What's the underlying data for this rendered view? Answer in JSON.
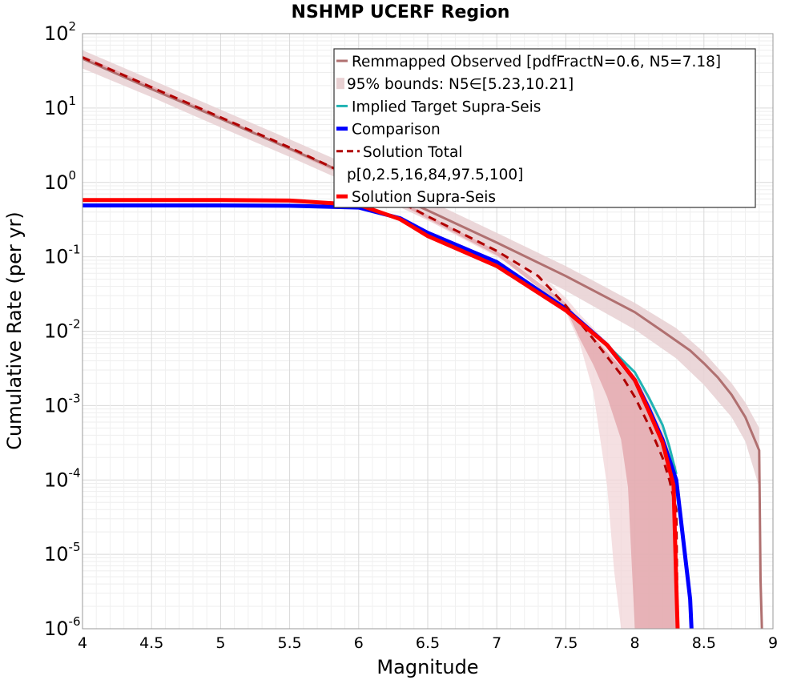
{
  "chart_data": {
    "type": "line",
    "title": "NSHMP UCERF Region",
    "xlabel": "Magnitude",
    "ylabel": "Cumulative Rate (per yr)",
    "xlim": [
      4,
      9
    ],
    "ylim": [
      1e-06,
      100
    ],
    "yscale": "log",
    "grid": true,
    "legend_position": "top-right",
    "x_ticks": [
      "4",
      "4.5",
      "5",
      "5.5",
      "6",
      "6.5",
      "7",
      "7.5",
      "8",
      "8.5",
      "9"
    ],
    "y_ticks": [
      {
        "base": "10",
        "exp": "-6"
      },
      {
        "base": "10",
        "exp": "-5"
      },
      {
        "base": "10",
        "exp": "-4"
      },
      {
        "base": "10",
        "exp": "-3"
      },
      {
        "base": "10",
        "exp": "-2"
      },
      {
        "base": "10",
        "exp": "-1"
      },
      {
        "base": "10",
        "exp": "0"
      },
      {
        "base": "10",
        "exp": "1"
      },
      {
        "base": "10",
        "exp": "2"
      }
    ],
    "legend": [
      {
        "label": "Remmapped Observed [pdfFractN=0.6, N5=7.18]",
        "style": "line",
        "color": "#b07070"
      },
      {
        "label": "95% bounds: N5∈[5.23,10.21]",
        "style": "band",
        "color": "#e8d0d2"
      },
      {
        "label": "Implied Target Supra-Seis",
        "style": "line",
        "color": "#1fb3b3"
      },
      {
        "label": "Comparison",
        "style": "thick-line",
        "color": "#0000ff"
      },
      {
        "label": "Solution Total",
        "style": "dashed",
        "color": "#b00000"
      },
      {
        "label": "p[0,2.5,16,84,97.5,100]",
        "style": "none",
        "color": "#ffffff"
      },
      {
        "label": "Solution Supra-Seis",
        "style": "thick-line",
        "color": "#ff0000"
      }
    ],
    "bands": [
      {
        "name": "95% bounds: N5∈[5.23,10.21]",
        "color": "#e8d0d2",
        "x": [
          4,
          4.5,
          5,
          5.5,
          6,
          6.5,
          7,
          7.5,
          8,
          8.3,
          8.5,
          8.7,
          8.8,
          8.9
        ],
        "lower": [
          34,
          14,
          5.5,
          2.2,
          0.85,
          0.31,
          0.105,
          0.035,
          0.0105,
          0.0043,
          0.0019,
          0.0007,
          0.00033,
          8e-05
        ],
        "upper": [
          60,
          24,
          9.5,
          3.8,
          1.5,
          0.58,
          0.21,
          0.075,
          0.024,
          0.011,
          0.0052,
          0.002,
          0.0011,
          0.0005
        ]
      },
      {
        "name": "Solution Total outer percentile band",
        "color": "#f1d6d8",
        "x": [
          4,
          5,
          5.5,
          6,
          6.5,
          7,
          7.3,
          7.5,
          7.6,
          7.7,
          7.8,
          7.85,
          7.9,
          8.0,
          8.1,
          8.2,
          8.25,
          8.3
        ],
        "lower": [
          45,
          7,
          2.8,
          0.99,
          0.31,
          0.1,
          0.048,
          0.018,
          0.007,
          0.0015,
          8e-05,
          6e-06,
          1e-06,
          1e-06,
          1e-06,
          1e-06,
          1e-06,
          1e-06
        ],
        "upper": [
          52,
          8,
          3.2,
          1.15,
          0.37,
          0.125,
          0.062,
          0.028,
          0.017,
          0.011,
          0.007,
          0.0055,
          0.0045,
          0.0025,
          0.0014,
          0.0006,
          0.00025,
          0.00012
        ]
      },
      {
        "name": "Solution Total inner percentile band",
        "color": "#e2a3a8",
        "x": [
          4,
          5,
          6,
          7,
          7.5,
          7.6,
          7.7,
          7.8,
          7.9,
          7.95,
          8.0,
          8.1,
          8.2,
          8.3
        ],
        "lower": [
          46,
          7.2,
          1.0,
          0.105,
          0.02,
          0.008,
          0.0035,
          0.0013,
          0.00035,
          8e-05,
          1e-06,
          1e-06,
          1e-06,
          1e-06
        ],
        "upper": [
          51,
          7.8,
          1.1,
          0.12,
          0.024,
          0.014,
          0.0085,
          0.0052,
          0.0033,
          0.0026,
          0.002,
          0.0011,
          0.0004,
          0.00015
        ]
      }
    ],
    "series": [
      {
        "name": "Remmapped Observed [pdfFractN=0.6, N5=7.18]",
        "color": "#b07070",
        "width": 3,
        "dash": "",
        "x": [
          4,
          4.5,
          5,
          5.5,
          6,
          6.5,
          7,
          7.5,
          8,
          8.2,
          8.4,
          8.5,
          8.6,
          8.7,
          8.8,
          8.9,
          8.91,
          8.92
        ],
        "y": [
          46,
          18,
          7.18,
          2.85,
          1.1,
          0.42,
          0.155,
          0.055,
          0.018,
          0.01,
          0.0055,
          0.0037,
          0.0024,
          0.0014,
          0.0007,
          0.00025,
          4.5e-06,
          1e-06
        ]
      },
      {
        "name": "Implied Target Supra-Seis",
        "color": "#1fb3b3",
        "width": 3,
        "dash": "",
        "x": [
          4,
          5,
          5.5,
          6,
          6.3,
          6.5,
          7,
          7.5,
          7.8,
          8,
          8.1,
          8.2,
          8.25,
          8.3
        ],
        "y": [
          0.5,
          0.5,
          0.495,
          0.47,
          0.33,
          0.19,
          0.075,
          0.019,
          0.0065,
          0.0028,
          0.0013,
          0.00055,
          0.00028,
          0.00012
        ]
      },
      {
        "name": "Comparison",
        "color": "#0000ff",
        "width": 5,
        "dash": "",
        "x": [
          4,
          5,
          5.5,
          6,
          6.3,
          6.5,
          7,
          7.5,
          7.8,
          8,
          8.1,
          8.2,
          8.3,
          8.4,
          8.41
        ],
        "y": [
          0.49,
          0.49,
          0.485,
          0.46,
          0.33,
          0.21,
          0.085,
          0.02,
          0.0065,
          0.0022,
          0.00092,
          0.00035,
          0.0001,
          2.5e-06,
          1e-06
        ]
      },
      {
        "name": "Solution Total",
        "color": "#b00000",
        "width": 3,
        "dash": "10,7",
        "x": [
          4,
          4.5,
          5,
          5.5,
          6,
          6.5,
          7,
          7.3,
          7.5,
          7.7,
          7.8,
          7.9,
          8.0,
          8.1,
          8.2,
          8.25,
          8.3,
          8.31
        ],
        "y": [
          48,
          19,
          7.5,
          2.95,
          1.08,
          0.35,
          0.12,
          0.055,
          0.022,
          0.0078,
          0.0045,
          0.0026,
          0.0013,
          0.00055,
          0.0002,
          0.0001,
          4e-05,
          1e-06
        ]
      },
      {
        "name": "Solution Supra-Seis",
        "color": "#ff0000",
        "width": 5,
        "dash": "",
        "x": [
          4,
          5,
          5.5,
          6,
          6.3,
          6.5,
          7,
          7.5,
          7.8,
          8,
          8.1,
          8.2,
          8.28,
          8.3,
          8.31
        ],
        "y": [
          0.58,
          0.58,
          0.57,
          0.5,
          0.32,
          0.19,
          0.075,
          0.019,
          0.0065,
          0.0022,
          0.00085,
          0.00032,
          8.5e-05,
          4e-06,
          1e-06
        ]
      }
    ]
  }
}
